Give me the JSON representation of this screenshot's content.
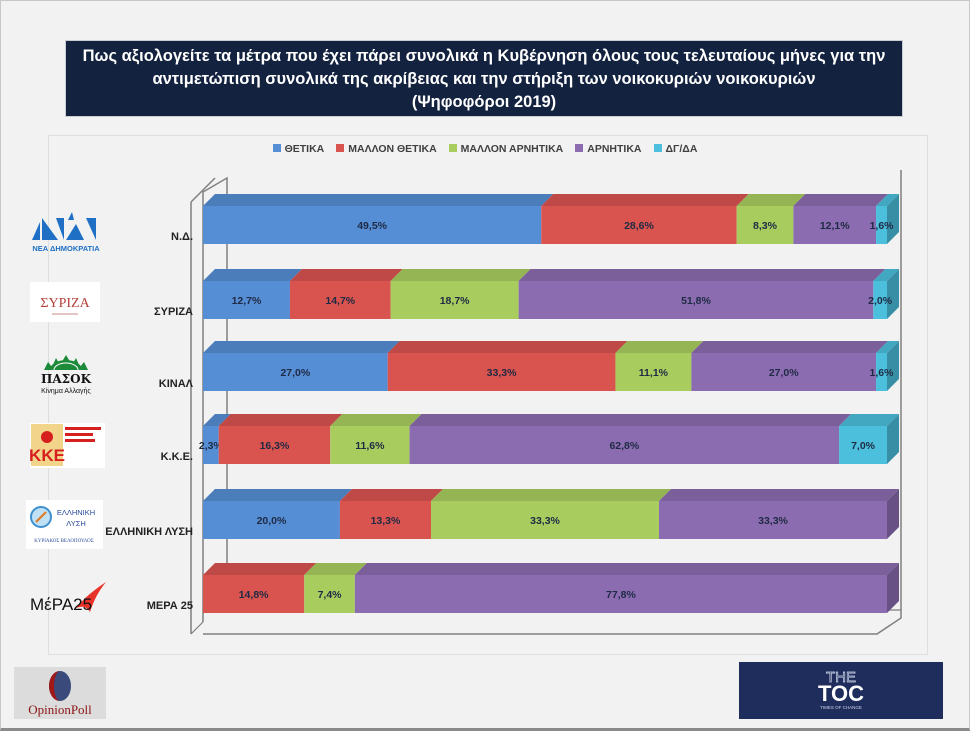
{
  "title": {
    "lines": [
      "Πως αξιολογείτε τα μέτρα που έχει πάρει συνολικά η Κυβέρνηση όλους τους τελευταίους μήνες για την",
      "αντιμετώπιση συνολικά της ακρίβειας και την στήριξη των νοικοκυριών νοικοκυριών",
      "(Ψηφοφόροι 2019)"
    ]
  },
  "parties": [
    {
      "label": "Ν.Δ.",
      "logo": "nea-dimokratia-logo",
      "logo_text": "ΝΕΑ ΔΗΜΟΚΡΑΤΙΑ"
    },
    {
      "label": "ΣΥΡΙΖΑ",
      "logo": "syriza-logo",
      "logo_text": "ΣΥΡΙΖΑ"
    },
    {
      "label": "ΚΙΝΑΛ",
      "logo": "pasok-logo",
      "logo_text": "ΠΑΣΟΚ",
      "logo_subtext": "Κίνημα Αλλαγής"
    },
    {
      "label": "Κ.Κ.Ε.",
      "logo": "kke-logo",
      "logo_text": "ΚΚΕ",
      "logo_subtext": "ΚΟΜΜΟΥΝΙΣΤΙΚΟ ΚΟΜΜΑ ΕΛΛΑΔΑΣ"
    },
    {
      "label": "ΕΛΛΗΝΙΚΗ ΛΥΣΗ",
      "logo": "elliniki-lysi-logo",
      "logo_text": "ΕΛΛΗΝΙΚΗ ΛΥΣΗ",
      "logo_subtext": "ΚΥΡΙΑΚΟΣ ΒΕΛΟΠΟΥΛΟΣ"
    },
    {
      "label": "ΜΕΡΑ 25",
      "logo": "mera25-logo",
      "logo_text": "ΜέΡΑ25"
    }
  ],
  "footer": {
    "left_logo_text": "OpinionPoll",
    "right_logo_text_top": "THE",
    "right_logo_text_main": "TOC",
    "right_logo_text_sub": "TIMES OF CHANGE"
  },
  "chart_data": {
    "type": "bar",
    "orientation": "horizontal",
    "stacked": "100%",
    "style": "3d",
    "title": "Πως αξιολογείτε τα μέτρα που έχει πάρει συνολικά η Κυβέρνηση όλους τους τελευταίους μήνες για την αντιμετώπιση συνολικά της ακρίβειας και την στήριξη των νοικοκυριών νοικοκυριών (Ψηφοφόροι 2019)",
    "xlabel": "",
    "ylabel": "",
    "xlim": [
      0,
      100
    ],
    "grid": false,
    "legend_position": "top",
    "categories": [
      "Ν.Δ.",
      "ΣΥΡΙΖΑ",
      "ΚΙΝΑΛ",
      "Κ.Κ.Ε.",
      "ΕΛΛΗΝΙΚΗ ΛΥΣΗ",
      "ΜΕΡΑ 25"
    ],
    "series": [
      {
        "name": "ΘΕΤΙΚΑ",
        "color": "#558ed5",
        "values": [
          49.5,
          12.7,
          27.0,
          2.3,
          20.0,
          0
        ]
      },
      {
        "name": "ΜΑΛΛΟΝ ΘΕΤΙΚΑ",
        "color": "#d9534f",
        "values": [
          28.6,
          14.7,
          33.3,
          16.3,
          13.3,
          14.8
        ]
      },
      {
        "name": "ΜΑΛΛΟΝ ΑΡΝΗΤΙΚΑ",
        "color": "#a9cc5f",
        "values": [
          8.3,
          18.7,
          11.1,
          11.6,
          33.3,
          7.4
        ]
      },
      {
        "name": "ΑΡΝΗΤΙΚΑ",
        "color": "#8b6cb0",
        "values": [
          12.1,
          51.8,
          27.0,
          62.8,
          33.3,
          77.8
        ]
      },
      {
        "name": "ΔΓ/ΔΑ",
        "color": "#4bbfdc",
        "values": [
          1.6,
          2.0,
          1.6,
          7.0,
          0,
          0
        ]
      }
    ],
    "data_labels": [
      [
        "49,5%",
        "28,6%",
        "8,3%",
        "12,1%",
        "1,6%"
      ],
      [
        "12,7%",
        "14,7%",
        "18,7%",
        "51,8%",
        "2,0%"
      ],
      [
        "27,0%",
        "33,3%",
        "11,1%",
        "27,0%",
        "1,6%"
      ],
      [
        "2,3%",
        "16,3%",
        "11,6%",
        "62,8%",
        "7,0%"
      ],
      [
        "20,0%",
        "13,3%",
        "33,3%",
        "33,3%",
        ""
      ],
      [
        "",
        "14,8%",
        "7,4%",
        "77,8%",
        ""
      ]
    ]
  }
}
